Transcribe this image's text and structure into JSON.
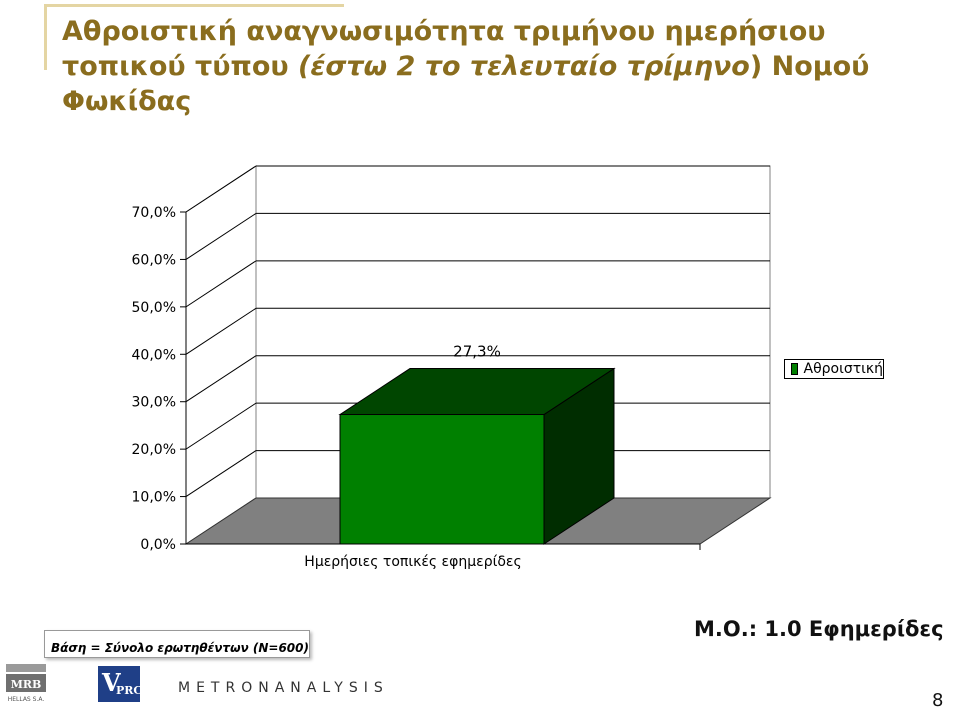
{
  "slide": {
    "title_part1": "Αθροιστική αναγνωσιμότητα τριμήνου ημερήσιου τοπικού τύπου ",
    "title_italic": "(έστω 2 το τελευταίο τρίμηνο",
    "title_part2": ") Νομού Φωκίδας",
    "base_note": "Βάση = Σύνολο ερωτηθέντων (N=600)",
    "mean_note": "Μ.Ο.: 1.0 Εφημερίδες",
    "page_number": "8",
    "logos": {
      "mrb_top": "MRB",
      "mrb_bottom": "HELLAS S.A.",
      "vprc": "VPRC",
      "metron": "METRONANALYSIS"
    }
  },
  "chart_data": {
    "type": "bar",
    "categories": [
      "Ημερήσιες τοπικές εφημερίδες"
    ],
    "series": [
      {
        "name": "Αθροιστική",
        "values": [
          27.3
        ],
        "color": "#008000"
      }
    ],
    "data_labels": [
      "27,3%"
    ],
    "ylim": [
      0,
      70
    ],
    "yticks": [
      "0,0%",
      "10,0%",
      "20,0%",
      "30,0%",
      "40,0%",
      "50,0%",
      "60,0%",
      "70,0%"
    ],
    "grid": true,
    "three_d": true,
    "legend": "right",
    "floor_color": "#808080"
  }
}
